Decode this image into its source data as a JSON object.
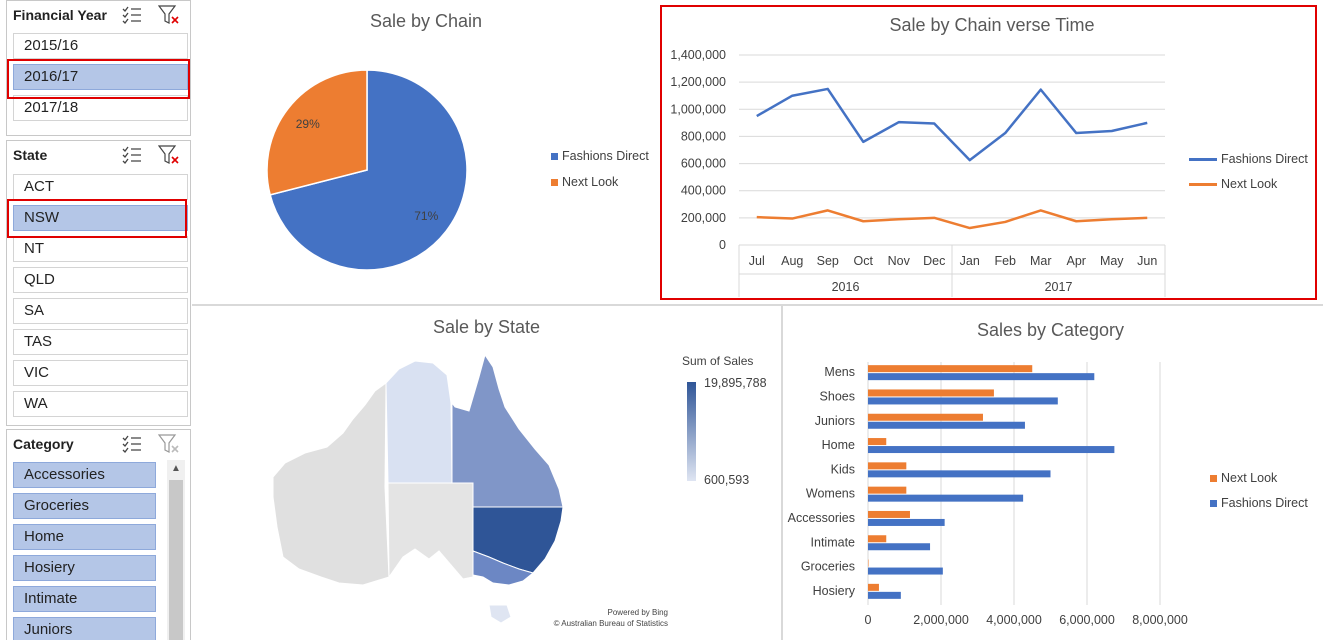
{
  "slicers": {
    "financial_year": {
      "title": "Financial Year",
      "items": [
        {
          "label": "2015/16",
          "selected": false
        },
        {
          "label": "2016/17",
          "selected": true
        },
        {
          "label": "2017/18",
          "selected": false
        }
      ]
    },
    "state": {
      "title": "State",
      "items": [
        {
          "label": "ACT",
          "selected": false
        },
        {
          "label": "NSW",
          "selected": true
        },
        {
          "label": "NT",
          "selected": false
        },
        {
          "label": "QLD",
          "selected": false
        },
        {
          "label": "SA",
          "selected": false
        },
        {
          "label": "TAS",
          "selected": false
        },
        {
          "label": "VIC",
          "selected": false
        },
        {
          "label": "WA",
          "selected": false
        }
      ]
    },
    "category": {
      "title": "Category",
      "items": [
        {
          "label": "Accessories",
          "selected": true
        },
        {
          "label": "Groceries",
          "selected": true
        },
        {
          "label": "Home",
          "selected": true
        },
        {
          "label": "Hosiery",
          "selected": true
        },
        {
          "label": "Intimate",
          "selected": true
        },
        {
          "label": "Juniors",
          "selected": true
        }
      ]
    }
  },
  "colors": {
    "fashions_direct": "#4472c4",
    "next_look": "#ed7d31",
    "highlight": "#e00000"
  },
  "pie": {
    "title": "Sale by Chain",
    "legend": [
      "Fashions Direct",
      "Next Look"
    ]
  },
  "line": {
    "title": "Sale by Chain verse Time",
    "legend": [
      "Fashions Direct",
      "Next Look"
    ]
  },
  "map": {
    "title": "Sale by State",
    "legend_title": "Sum of Sales",
    "max_label": "19,895,788",
    "min_label": "600,593",
    "credit1": "Powered by Bing",
    "credit2": "© Australian Bureau of Statistics"
  },
  "bar": {
    "title": "Sales by Category",
    "legend": [
      "Next Look",
      "Fashions Direct"
    ]
  },
  "chart_data": [
    {
      "type": "pie",
      "title": "Sale by Chain",
      "categories": [
        "Fashions Direct",
        "Next Look"
      ],
      "values": [
        71,
        29
      ],
      "data_labels": [
        "71%",
        "29%"
      ],
      "legend_position": "right"
    },
    {
      "type": "line",
      "title": "Sale by Chain verse Time",
      "categories": [
        "Jul",
        "Aug",
        "Sep",
        "Oct",
        "Nov",
        "Dec",
        "Jan",
        "Feb",
        "Mar",
        "Apr",
        "May",
        "Jun"
      ],
      "year_groups": [
        {
          "label": "2016",
          "count": 6
        },
        {
          "label": "2017",
          "count": 6
        }
      ],
      "series": [
        {
          "name": "Fashions Direct",
          "values": [
            950000,
            1100000,
            1150000,
            760000,
            905000,
            895000,
            625000,
            825000,
            1145000,
            825000,
            840000,
            900000
          ]
        },
        {
          "name": "Next Look",
          "values": [
            205000,
            195000,
            255000,
            175000,
            190000,
            200000,
            125000,
            170000,
            255000,
            175000,
            190000,
            200000
          ]
        }
      ],
      "yticks": [
        "0",
        "200,000",
        "400,000",
        "600,000",
        "800,000",
        "1,000,000",
        "1,200,000",
        "1,400,000"
      ],
      "ylim": [
        0,
        1400000
      ],
      "legend_position": "right"
    },
    {
      "type": "bar",
      "title": "Sales by Category",
      "categories": [
        "Mens",
        "Shoes",
        "Juniors",
        "Home",
        "Kids",
        "Womens",
        "Accessories",
        "Intimate",
        "Groceries",
        "Hosiery"
      ],
      "series": [
        {
          "name": "Next Look",
          "values": [
            4500000,
            3450000,
            3150000,
            500000,
            1050000,
            1050000,
            1150000,
            500000,
            0,
            300000
          ]
        },
        {
          "name": "Fashions Direct",
          "values": [
            6200000,
            5200000,
            4300000,
            6750000,
            5000000,
            4250000,
            2100000,
            1700000,
            2050000,
            900000
          ]
        }
      ],
      "xticks": [
        "0",
        "2,000,000",
        "4,000,000",
        "6,000,000",
        "8,000,000"
      ],
      "xlim": [
        0,
        8000000
      ],
      "legend_position": "right"
    }
  ]
}
